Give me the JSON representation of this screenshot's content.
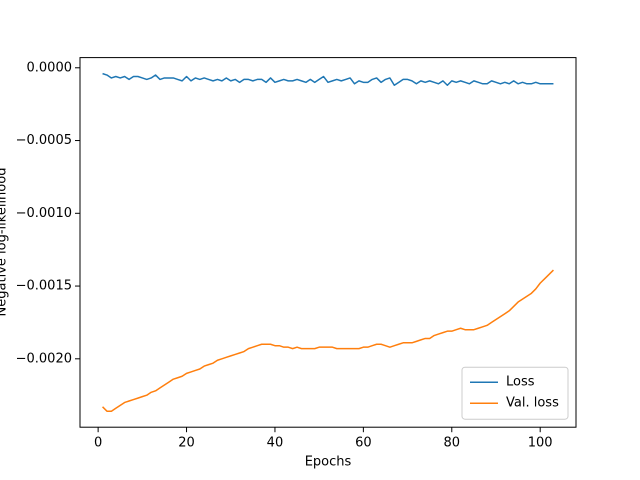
{
  "chart_data": {
    "type": "line",
    "xlabel": "Epochs",
    "ylabel": "Negative log-likelihood",
    "x": [
      1,
      2,
      3,
      4,
      5,
      6,
      7,
      8,
      9,
      10,
      11,
      12,
      13,
      14,
      15,
      16,
      17,
      18,
      19,
      20,
      21,
      22,
      23,
      24,
      25,
      26,
      27,
      28,
      29,
      30,
      31,
      32,
      33,
      34,
      35,
      36,
      37,
      38,
      39,
      40,
      41,
      42,
      43,
      44,
      45,
      46,
      47,
      48,
      49,
      50,
      51,
      52,
      53,
      54,
      55,
      56,
      57,
      58,
      59,
      60,
      61,
      62,
      63,
      64,
      65,
      66,
      67,
      68,
      69,
      70,
      71,
      72,
      73,
      74,
      75,
      76,
      77,
      78,
      79,
      80,
      81,
      82,
      83,
      84,
      85,
      86,
      87,
      88,
      89,
      90,
      91,
      92,
      93,
      94,
      95,
      96,
      97,
      98,
      99,
      100,
      101,
      102,
      103
    ],
    "series": [
      {
        "name": "Loss",
        "color": "#1f77b4",
        "values": [
          -4e-05,
          -5e-05,
          -7e-05,
          -6e-05,
          -7e-05,
          -6e-05,
          -8e-05,
          -6e-05,
          -6e-05,
          -7e-05,
          -8e-05,
          -7e-05,
          -5e-05,
          -8e-05,
          -7e-05,
          -7e-05,
          -7e-05,
          -8e-05,
          -9e-05,
          -6e-05,
          -9e-05,
          -7e-05,
          -8e-05,
          -7e-05,
          -8e-05,
          -9e-05,
          -8e-05,
          -9e-05,
          -7e-05,
          -9e-05,
          -8e-05,
          -0.0001,
          -8e-05,
          -8e-05,
          -9e-05,
          -8e-05,
          -8e-05,
          -0.0001,
          -7e-05,
          -0.0001,
          -9e-05,
          -8e-05,
          -9e-05,
          -9e-05,
          -8e-05,
          -9e-05,
          -0.0001,
          -8e-05,
          -0.0001,
          -8e-05,
          -6e-05,
          -0.0001,
          -9e-05,
          -8e-05,
          -9e-05,
          -8e-05,
          -7e-05,
          -0.00011,
          -9e-05,
          -0.0001,
          -0.0001,
          -8e-05,
          -7e-05,
          -0.0001,
          -8e-05,
          -7e-05,
          -0.00012,
          -0.0001,
          -8e-05,
          -8e-05,
          -9e-05,
          -0.00011,
          -9e-05,
          -0.0001,
          -9e-05,
          -0.0001,
          -0.00011,
          -9e-05,
          -0.00012,
          -9e-05,
          -0.0001,
          -9e-05,
          -0.0001,
          -0.00011,
          -9e-05,
          -0.0001,
          -0.00011,
          -0.00011,
          -9e-05,
          -0.0001,
          -0.00011,
          -0.0001,
          -0.00011,
          -9e-05,
          -0.00011,
          -0.0001,
          -0.00011,
          -0.00011,
          -0.0001,
          -0.00011,
          -0.00011,
          -0.00011,
          -0.00011
        ]
      },
      {
        "name": "Val. loss",
        "color": "#ff7f0e",
        "values": [
          -0.00233,
          -0.00236,
          -0.00236,
          -0.00234,
          -0.00232,
          -0.0023,
          -0.00229,
          -0.00228,
          -0.00227,
          -0.00226,
          -0.00225,
          -0.00223,
          -0.00222,
          -0.0022,
          -0.00218,
          -0.00216,
          -0.00214,
          -0.00213,
          -0.00212,
          -0.0021,
          -0.00209,
          -0.00208,
          -0.00207,
          -0.00205,
          -0.00204,
          -0.00203,
          -0.00201,
          -0.002,
          -0.00199,
          -0.00198,
          -0.00197,
          -0.00196,
          -0.00195,
          -0.00193,
          -0.00192,
          -0.00191,
          -0.0019,
          -0.0019,
          -0.0019,
          -0.00191,
          -0.00191,
          -0.00192,
          -0.00192,
          -0.00193,
          -0.00192,
          -0.00193,
          -0.00193,
          -0.00193,
          -0.00193,
          -0.00192,
          -0.00192,
          -0.00192,
          -0.00192,
          -0.00193,
          -0.00193,
          -0.00193,
          -0.00193,
          -0.00193,
          -0.00193,
          -0.00192,
          -0.00192,
          -0.00191,
          -0.0019,
          -0.0019,
          -0.00191,
          -0.00192,
          -0.00191,
          -0.0019,
          -0.00189,
          -0.00189,
          -0.00189,
          -0.00188,
          -0.00187,
          -0.00186,
          -0.00186,
          -0.00184,
          -0.00183,
          -0.00182,
          -0.00181,
          -0.00181,
          -0.0018,
          -0.00179,
          -0.0018,
          -0.0018,
          -0.0018,
          -0.00179,
          -0.00178,
          -0.00177,
          -0.00175,
          -0.00173,
          -0.00171,
          -0.00169,
          -0.00167,
          -0.00164,
          -0.00161,
          -0.00159,
          -0.00157,
          -0.00155,
          -0.00152,
          -0.00148,
          -0.00145,
          -0.00142,
          -0.00139
        ]
      }
    ],
    "xlim": [
      -4.1,
      108.1
    ],
    "xticks": [
      0,
      20,
      40,
      60,
      80,
      100
    ],
    "ylim": [
      -0.00247,
      7e-05
    ],
    "yticks": [
      {
        "value": -0.002,
        "label": "−0.0020"
      },
      {
        "value": -0.0015,
        "label": "−0.0015"
      },
      {
        "value": -0.001,
        "label": "−0.0010"
      },
      {
        "value": -0.0005,
        "label": "−0.0005"
      },
      {
        "value": 0,
        "label": "0.0000"
      }
    ],
    "grid": false,
    "legend": "lower right"
  }
}
